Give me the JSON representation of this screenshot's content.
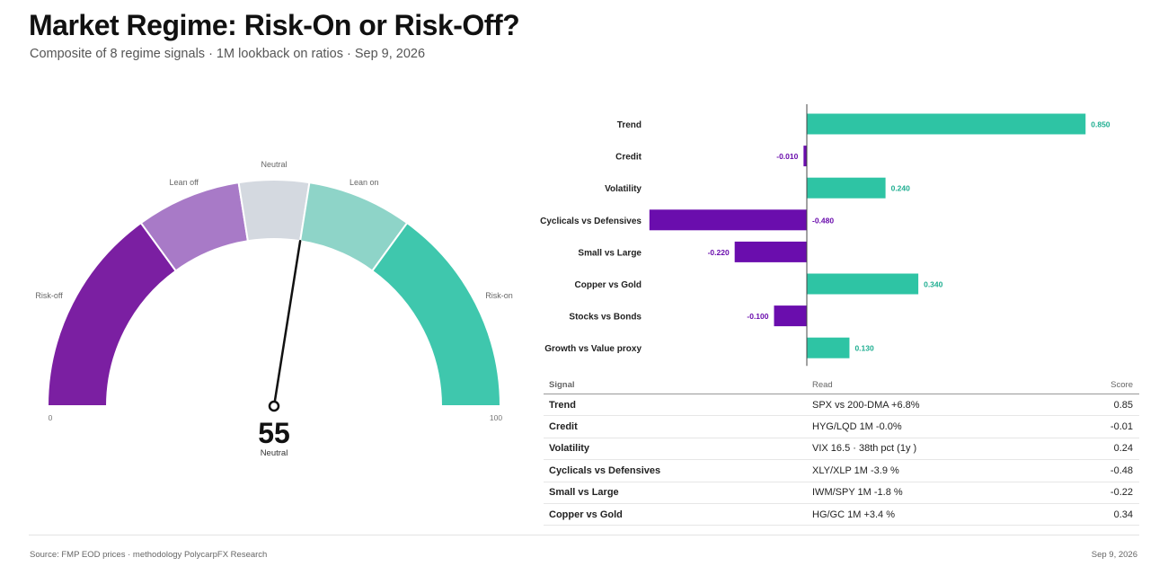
{
  "header": {
    "title": "Market Regime: Risk-On or Risk-Off?",
    "subtitle": "Composite of 8 regime signals · 1M  lookback on ratios · Sep 9, 2026"
  },
  "gauge": {
    "value": 55,
    "value_label": "55",
    "state": "Neutral",
    "min_label": "0",
    "max_label": "100",
    "min": 0,
    "max": 100,
    "zones": [
      {
        "label": "Risk-off",
        "from": 0,
        "to": 30,
        "color": "#7b1fa2"
      },
      {
        "label": "Lean off",
        "from": 30,
        "to": 45,
        "color": "#a87ac7"
      },
      {
        "label": "Neutral",
        "from": 45,
        "to": 55,
        "color": "#d4d9e0"
      },
      {
        "label": "Lean on",
        "from": 55,
        "to": 70,
        "color": "#8ed4c8"
      },
      {
        "label": "Risk-on",
        "from": 70,
        "to": 100,
        "color": "#3fc7ad"
      }
    ]
  },
  "colors": {
    "positive": "#2ec4a4",
    "negative": "#6a0dad",
    "positive_text": "#1fae91"
  },
  "chart_data": {
    "type": "bar",
    "orientation": "horizontal",
    "categories": [
      "Trend",
      "Credit",
      "Volatility",
      "Cyclicals vs Defensives",
      "Small vs Large",
      "Copper vs Gold",
      "Stocks vs Bonds",
      "Growth vs Value proxy"
    ],
    "values": [
      0.85,
      -0.01,
      0.24,
      -0.48,
      -0.22,
      0.34,
      -0.1,
      0.13
    ],
    "value_labels": [
      "0.850",
      "-0.010",
      "0.240",
      "-0.480",
      "-0.220",
      "0.340",
      "-0.100",
      "0.130"
    ],
    "xlim": [
      -0.48,
      0.85
    ]
  },
  "table": {
    "headers": {
      "signal": "Signal",
      "read": "Read",
      "score": "Score"
    },
    "rows": [
      {
        "signal": "Trend",
        "read": "SPX vs 200-DMA +6.8%",
        "score": "0.85"
      },
      {
        "signal": "Credit",
        "read": "HYG/LQD 1M  -0.0%",
        "score": "-0.01"
      },
      {
        "signal": "Volatility",
        "read": "VIX 16.5  · 38th pct (1y )",
        "score": "0.24"
      },
      {
        "signal": "Cyclicals vs Defensives",
        "read": "XLY/XLP 1M  -3.9 %",
        "score": "-0.48"
      },
      {
        "signal": "Small vs Large",
        "read": "IWM/SPY 1M  -1.8 %",
        "score": "-0.22"
      },
      {
        "signal": "Copper vs Gold",
        "read": "HG/GC 1M  +3.4 %",
        "score": "0.34"
      }
    ]
  },
  "footer": {
    "source": "Source: FMP EOD prices · methodology PolycarpFX Research",
    "date": "Sep 9, 2026"
  }
}
